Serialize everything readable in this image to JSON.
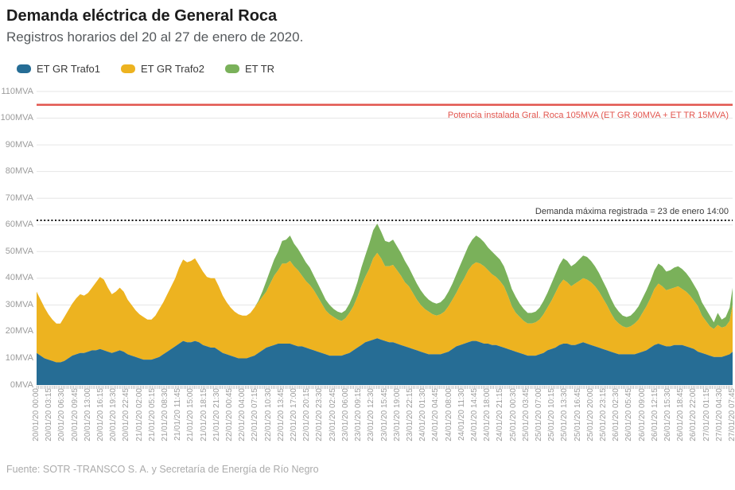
{
  "header": {
    "title": "Demanda eléctrica de General Roca",
    "subtitle": "Registros horarios del 20 al 27 de enero de 2020."
  },
  "footer": {
    "source": "Fuente: SOTR -TRANSCO S. A. y Secretaría de Energía de Río Negro"
  },
  "chart_data": {
    "type": "area",
    "stacked": true,
    "title": "Demanda eléctrica de General Roca",
    "subtitle": "Registros horarios del 20 al 27 de enero de 2020.",
    "unit": "MVA",
    "ylim": [
      0,
      110
    ],
    "grid": true,
    "legend_position": "top-left",
    "x_start": "20/01/20 00:00",
    "x_end": "27/01/20 07:45",
    "sample_interval_hours": 1,
    "yticks": [
      "0MVA",
      "10MVA",
      "20MVA",
      "30MVA",
      "40MVA",
      "50MVA",
      "60MVA",
      "70MVA",
      "80MVA",
      "90MVA",
      "100MVA",
      "110MVA"
    ],
    "xticks": [
      "20/01/20 00:00",
      "20/01/20 03:15",
      "20/01/20 06:30",
      "20/01/20 09:45",
      "20/01/20 13:00",
      "20/01/20 16:15",
      "20/01/20 19:30",
      "20/01/20 22:45",
      "21/01/20 02:00",
      "21/01/20 05:15",
      "21/01/20 08:30",
      "21/01/20 11:45",
      "21/01/20 15:00",
      "21/01/20 18:15",
      "21/01/20 21:30",
      "22/01/20 00:45",
      "22/01/20 04:00",
      "22/01/20 07:15",
      "22/01/20 10:30",
      "22/01/20 13:45",
      "22/01/20 17:00",
      "22/01/20 20:15",
      "22/01/20 23:30",
      "23/01/20 02:45",
      "23/01/20 06:00",
      "23/01/20 09:15",
      "23/01/20 12:30",
      "23/01/20 15:45",
      "23/01/20 19:00",
      "23/01/20 22:15",
      "24/01/20 01:30",
      "24/01/20 04:45",
      "24/01/20 08:00",
      "24/01/20 11:30",
      "24/01/20 14:45",
      "24/01/20 18:00",
      "24/01/20 21:15",
      "25/01/20 00:30",
      "25/01/20 03:45",
      "25/01/20 07:00",
      "25/01/20 10:15",
      "25/01/20 13:30",
      "25/01/20 16:45",
      "25/01/20 20:00",
      "25/01/20 23:15",
      "26/01/20 02:30",
      "26/01/20 05:45",
      "26/01/20 09:00",
      "26/01/20 12:15",
      "26/01/20 15:30",
      "26/01/20 18:45",
      "26/01/20 22:00",
      "27/01/20 01:15",
      "27/01/20 04:30",
      "27/01/20 07:45"
    ],
    "series": [
      {
        "name": "ET GR Trafo1",
        "color": "#266d95",
        "values": [
          12,
          11,
          10,
          9.5,
          9,
          8.5,
          8.5,
          9,
          10,
          11,
          11.5,
          12,
          12,
          12.5,
          13,
          13,
          13.5,
          13,
          12.5,
          12,
          12.5,
          13,
          12.5,
          11.5,
          11,
          10.5,
          10,
          9.5,
          9.5,
          9.5,
          10,
          10.5,
          11.5,
          12.5,
          13.5,
          14.5,
          15.5,
          16.5,
          16,
          16,
          16.5,
          16,
          15,
          14.5,
          14,
          14,
          13,
          12,
          11.5,
          11,
          10.5,
          10,
          10,
          10,
          10.5,
          11,
          12,
          13,
          14,
          14.5,
          15,
          15.5,
          15.5,
          15.5,
          15.5,
          15,
          14.5,
          14.5,
          14,
          13.5,
          13,
          12.5,
          12,
          11.5,
          11,
          11,
          11,
          11,
          11.5,
          12,
          13,
          14,
          15,
          16,
          16.5,
          17,
          17.5,
          17,
          16.5,
          16,
          16,
          15.5,
          15,
          14.5,
          14,
          13.5,
          13,
          12.5,
          12,
          11.5,
          11.5,
          11.5,
          11.5,
          12,
          12.5,
          13.5,
          14.5,
          15,
          15.5,
          16,
          16.5,
          16.5,
          16,
          15.5,
          15.5,
          15,
          15,
          14.5,
          14,
          13.5,
          13,
          12.5,
          12,
          11.5,
          11,
          11,
          11,
          11.5,
          12,
          13,
          13.5,
          14,
          15,
          15.5,
          15.5,
          15,
          15,
          15.5,
          16,
          15.5,
          15,
          14.5,
          14,
          13.5,
          13,
          12.5,
          12,
          11.5,
          11.5,
          11.5,
          11.5,
          11.5,
          12,
          12.5,
          13,
          14,
          15,
          15.5,
          15,
          14.5,
          14.5,
          15,
          15,
          15,
          14.5,
          14,
          13.5,
          12.5,
          12,
          11.5,
          11,
          10.5,
          10.5,
          10.5,
          11,
          11.5,
          12.5
        ]
      },
      {
        "name": "ET GR Trafo2",
        "color": "#edb320",
        "values": [
          23,
          21,
          19,
          17,
          15.5,
          14.5,
          14.5,
          16.5,
          18,
          19.5,
          21,
          22,
          21.5,
          22,
          23.5,
          25.5,
          27,
          26.5,
          24,
          22,
          22.5,
          23.5,
          22.5,
          20.5,
          19,
          17.5,
          16.5,
          16,
          15,
          15,
          16,
          18,
          19.5,
          21.5,
          23.5,
          25.5,
          28.5,
          30.5,
          30,
          30.5,
          31,
          29,
          27.5,
          26,
          26,
          26,
          24,
          21.5,
          19.5,
          18,
          17,
          16.5,
          16,
          16,
          16.5,
          18,
          19,
          20,
          21,
          23.5,
          26,
          27.5,
          30,
          30,
          31,
          29.5,
          28.5,
          26.5,
          25,
          24,
          22.5,
          20.5,
          18.5,
          16.5,
          15.5,
          14.5,
          13.5,
          13,
          13.5,
          15,
          16.5,
          19,
          22,
          24.5,
          27,
          30.5,
          32,
          30.5,
          28,
          28.5,
          29,
          27.5,
          26,
          24,
          23,
          21,
          19,
          17.5,
          16.5,
          16,
          15,
          14.5,
          15,
          15.5,
          17,
          18.5,
          20,
          22.5,
          24.5,
          27,
          28.5,
          29.5,
          29.5,
          29,
          27.5,
          26.5,
          25.5,
          24.5,
          23,
          20,
          16.5,
          14.5,
          13.5,
          12.5,
          12,
          12,
          12.5,
          13,
          14.5,
          16,
          18,
          20.5,
          22.5,
          24,
          23,
          22,
          23,
          23.5,
          24,
          24,
          23.5,
          22.5,
          21,
          19,
          17,
          14.5,
          12.5,
          11.5,
          10.5,
          10,
          10.5,
          11.5,
          12.5,
          14.5,
          16.5,
          18.5,
          21,
          22.5,
          22,
          21,
          21.5,
          21.5,
          22,
          21,
          20.5,
          19.5,
          18,
          17,
          14,
          12.5,
          11,
          10.5,
          12,
          11,
          11,
          12.5,
          17.5
        ]
      },
      {
        "name": "ET TR",
        "color": "#7ab15a",
        "values": [
          0,
          0,
          0,
          0,
          0,
          0,
          0,
          0,
          0,
          0,
          0,
          0,
          0,
          0,
          0,
          0,
          0,
          0,
          0,
          0,
          0,
          0,
          0,
          0,
          0,
          0,
          0,
          0,
          0,
          0,
          0,
          0,
          0,
          0,
          0,
          0,
          0,
          0,
          0,
          0,
          0,
          0,
          0,
          0,
          0,
          0,
          0,
          0,
          0,
          0,
          0,
          0,
          0,
          0,
          0,
          0,
          0.5,
          2,
          4,
          5,
          6,
          7,
          8.5,
          9,
          9.5,
          8.5,
          8,
          7.5,
          7,
          6.5,
          5.5,
          5,
          4.5,
          4,
          3.5,
          3,
          3,
          3,
          3,
          3.5,
          4.5,
          5.5,
          7,
          8,
          9.5,
          10.5,
          11,
          10,
          9.5,
          9,
          9.5,
          9,
          8.5,
          8,
          7,
          6.5,
          6,
          5.5,
          5,
          4.5,
          4.5,
          4.5,
          4.5,
          5,
          5.5,
          6,
          7,
          7.5,
          8.5,
          9,
          9.5,
          10,
          9.5,
          9,
          8.5,
          8.5,
          8,
          8,
          7.5,
          7,
          6.5,
          6,
          5,
          4.5,
          4,
          4,
          4,
          4.5,
          5,
          5.5,
          6.5,
          7,
          7.5,
          8,
          8,
          7.5,
          7.5,
          8,
          8.5,
          8.5,
          8,
          7.5,
          7,
          6.5,
          6,
          5.5,
          5,
          4.5,
          4,
          4,
          4,
          4.5,
          5,
          5.5,
          6,
          6.5,
          7,
          7.5,
          7.5,
          7,
          7,
          7.5,
          7.5,
          7.5,
          7,
          6.5,
          6,
          5.5,
          5,
          4.5,
          4,
          2.5,
          4.5,
          3,
          3.5,
          5,
          6.5
        ]
      }
    ],
    "annotations": {
      "installed_capacity": {
        "label": "Potencia instalada Gral. Roca 105MVA (ET GR 90MVA + ET TR 15MVA)",
        "value_mva": 105,
        "color": "#e2564f",
        "line_style": "solid"
      },
      "max_demand": {
        "label": "Demanda máxima registrada = 23 de enero 14:00",
        "value_mva": 61.7,
        "color": "#1a1a1a",
        "line_style": "dotted"
      }
    }
  }
}
